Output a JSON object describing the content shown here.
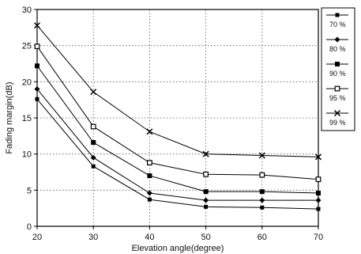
{
  "chart_data": {
    "type": "line",
    "title": "",
    "xlabel": "Elevation angle(degree)",
    "ylabel": "Fading margin(dB)",
    "xlim": [
      20,
      70
    ],
    "ylim": [
      0,
      30
    ],
    "x": [
      20,
      30,
      40,
      50,
      60,
      70
    ],
    "xticks": [
      "20",
      "30",
      "40",
      "50",
      "60",
      "70"
    ],
    "yticks": [
      "0",
      "5",
      "10",
      "15",
      "20",
      "25",
      "30"
    ],
    "grid": true,
    "legend_position": "right",
    "series": [
      {
        "name": "70 %",
        "marker": "square",
        "values": [
          17.6,
          8.3,
          3.7,
          2.7,
          2.6,
          2.4
        ]
      },
      {
        "name": "80 %",
        "marker": "diamond",
        "values": [
          19.0,
          9.5,
          4.6,
          3.6,
          3.6,
          3.6
        ]
      },
      {
        "name": "90 %",
        "marker": "filled-square",
        "values": [
          22.2,
          11.6,
          7.0,
          4.8,
          4.8,
          4.6
        ]
      },
      {
        "name": "95 %",
        "marker": "open-square",
        "values": [
          24.9,
          13.8,
          8.8,
          7.2,
          7.1,
          6.5
        ]
      },
      {
        "name": "99 %",
        "marker": "x",
        "values": [
          27.8,
          18.6,
          13.1,
          10.0,
          9.8,
          9.6
        ]
      }
    ]
  }
}
